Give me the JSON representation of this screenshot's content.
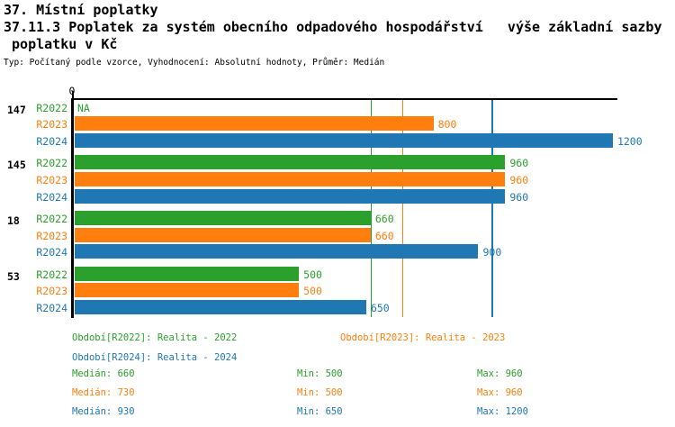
{
  "header": {
    "title": "37. Místní poplatky",
    "subtitle_line1": "37.11.3 Poplatek za systém obecního odpadového hospodářství   výše základní sazby",
    "subtitle_line2": " poplatku v Kč",
    "meta": "Typ: Počítaný podle vzorce, Vyhodnocení: Absolutní hodnoty, Průměr: Medián"
  },
  "colors": {
    "r2022": "#2ca02c",
    "r2023": "#ff7f0e",
    "r2024": "#1f77b4",
    "axis": "#000000",
    "background": "#ffffff"
  },
  "axis": {
    "zero_tick_label": "0"
  },
  "chart_data": {
    "type": "bar",
    "orientation": "horizontal",
    "title": "37.11.3 Poplatek za systém obecního odpadového hospodářství   výše základní sazby poplatku v Kč",
    "categories": [
      "147",
      "145",
      "18",
      "53"
    ],
    "na_label": "NA",
    "xlim": [
      0,
      1210
    ],
    "x_ticks": [
      0
    ],
    "grid": "median-lines-only",
    "legend_position": "bottom",
    "series": [
      {
        "name": "R2022",
        "legend_label": "Období[R2022]: Realita - 2022",
        "color": "#2ca02c",
        "values": [
          null,
          960,
          660,
          500
        ],
        "median": 660,
        "min": 500,
        "max": 960
      },
      {
        "name": "R2023",
        "legend_label": "Období[R2023]: Realita - 2023",
        "color": "#ff7f0e",
        "values": [
          800,
          960,
          660,
          500
        ],
        "median": 730,
        "min": 500,
        "max": 960
      },
      {
        "name": "R2024",
        "legend_label": "Období[R2024]: Realita - 2024",
        "color": "#1f77b4",
        "values": [
          1200,
          960,
          900,
          650
        ],
        "median": 930,
        "min": 650,
        "max": 1200
      }
    ],
    "median_gridlines": [
      660,
      730,
      930
    ]
  },
  "legend": {
    "r2022": "Období[R2022]: Realita - 2022",
    "r2023": "Období[R2023]: Realita - 2023",
    "r2024": "Období[R2024]: Realita - 2024"
  },
  "stats": [
    {
      "series": "R2022",
      "median": "Medián: 660",
      "min": "Min: 500",
      "max": "Max: 960"
    },
    {
      "series": "R2023",
      "median": "Medián: 730",
      "min": "Min: 500",
      "max": "Max: 960"
    },
    {
      "series": "R2024",
      "median": "Medián: 930",
      "min": "Min: 650",
      "max": "Max: 1200"
    }
  ]
}
